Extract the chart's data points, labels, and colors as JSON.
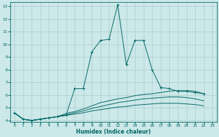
{
  "xlabel": "Humidex (Indice chaleur)",
  "x": [
    0,
    1,
    2,
    3,
    4,
    5,
    6,
    7,
    8,
    9,
    10,
    11,
    12,
    13,
    14,
    15,
    16,
    17,
    18,
    19,
    20,
    21,
    22,
    23
  ],
  "line1": [
    4.6,
    4.1,
    4.0,
    4.1,
    4.2,
    4.3,
    4.4,
    6.5,
    6.5,
    9.4,
    10.3,
    10.4,
    13.1,
    8.4,
    10.3,
    10.3,
    8.0,
    6.6,
    6.5,
    6.3,
    6.3,
    6.2,
    6.1,
    null
  ],
  "line2": [
    4.6,
    4.1,
    4.0,
    4.1,
    4.2,
    4.3,
    4.55,
    4.7,
    4.9,
    5.15,
    5.4,
    5.55,
    5.7,
    5.8,
    5.95,
    6.05,
    6.1,
    6.2,
    6.3,
    6.35,
    6.35,
    6.3,
    6.1,
    null
  ],
  "line3": [
    4.6,
    4.1,
    4.0,
    4.1,
    4.2,
    4.3,
    4.45,
    4.6,
    4.75,
    4.95,
    5.1,
    5.25,
    5.4,
    5.5,
    5.6,
    5.7,
    5.75,
    5.8,
    5.85,
    5.85,
    5.8,
    5.7,
    5.55,
    null
  ],
  "line4": [
    4.6,
    4.1,
    4.0,
    4.1,
    4.2,
    4.3,
    4.4,
    4.5,
    4.6,
    4.75,
    4.85,
    4.95,
    5.05,
    5.1,
    5.2,
    5.25,
    5.3,
    5.35,
    5.35,
    5.35,
    5.3,
    5.25,
    5.15,
    null
  ],
  "line_color": "#006666",
  "bg_color": "#cce8e8",
  "grid_color": "#aacccc",
  "ylim": [
    4,
    13
  ],
  "xlim": [
    -0.5,
    23.5
  ],
  "yticks": [
    4,
    5,
    6,
    7,
    8,
    9,
    10,
    11,
    12,
    13
  ],
  "xticks": [
    0,
    1,
    2,
    3,
    4,
    5,
    6,
    7,
    8,
    9,
    10,
    11,
    12,
    13,
    14,
    15,
    16,
    17,
    18,
    19,
    20,
    21,
    22,
    23
  ]
}
